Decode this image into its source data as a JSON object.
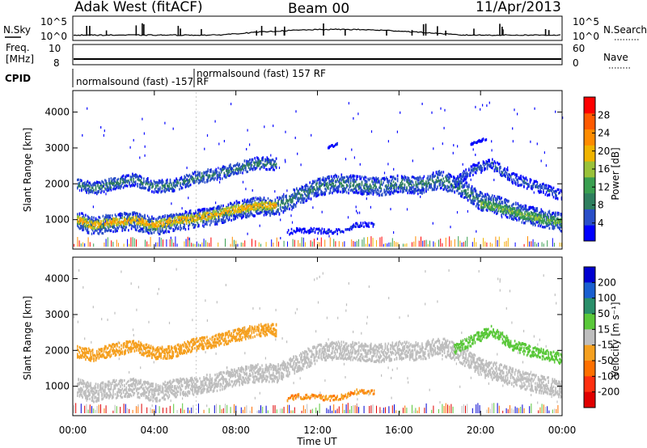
{
  "header": {
    "site": "Adak West (fitACF)",
    "beam": "Beam 00",
    "date": "11/Apr/2013"
  },
  "sky_panel": {
    "left_label": "N.Sky",
    "right_label": "N.Search",
    "ticks_left": [
      "10^5",
      "10^0"
    ],
    "ticks_right": [
      "10^5",
      "10^0"
    ]
  },
  "freq_panel": {
    "left_label_top": "Freq.",
    "left_label_unit": "[MHz]",
    "right_label": "Nave",
    "ticks_left": [
      "10",
      "8"
    ],
    "ticks_right": [
      "60",
      "0"
    ]
  },
  "cpid_panel": {
    "label": "CPID",
    "mode_a": "normalsound (fast) -157 RF",
    "mode_b": "normalsound (fast) 157 RF"
  },
  "chart_data": [
    {
      "type": "heatmap",
      "name": "power",
      "ylabel": "Slant Range [km]",
      "xlim": [
        0,
        24
      ],
      "ylim": [
        180,
        4600
      ],
      "yticks": [
        1000,
        2000,
        3000,
        4000
      ],
      "colorbar": {
        "label": "Power [dB]",
        "range": [
          0,
          32
        ],
        "ticks": [
          4,
          8,
          12,
          16,
          20,
          24,
          28
        ],
        "colors": [
          "#0000ff",
          "#2a4fc8",
          "#2f7f5f",
          "#3a9f50",
          "#9ac23a",
          "#f0b400",
          "#ff8c00",
          "#ff5a00",
          "#ff0000"
        ]
      },
      "bands": [
        {
          "points": [
            [
              0.2,
              1000
            ],
            [
              1,
              850
            ],
            [
              2,
              950
            ],
            [
              3,
              1000
            ],
            [
              4,
              850
            ],
            [
              5,
              980
            ],
            [
              6,
              1050
            ],
            [
              7,
              1150
            ],
            [
              8,
              1300
            ],
            [
              9,
              1400
            ],
            [
              10,
              1400
            ],
            [
              11,
              1680
            ],
            [
              12,
              1950
            ],
            [
              13,
              2050
            ],
            [
              14,
              2000
            ],
            [
              15,
              1950
            ],
            [
              16,
              2030
            ],
            [
              17,
              2000
            ],
            [
              18,
              2150
            ],
            [
              19,
              1930
            ],
            [
              20,
              1550
            ],
            [
              21,
              1400
            ],
            [
              22,
              1200
            ],
            [
              23,
              1080
            ],
            [
              24,
              950
            ]
          ],
          "width": 500,
          "power": 9
        },
        {
          "points": [
            [
              0.2,
              1030
            ],
            [
              1,
              880
            ],
            [
              2,
              980
            ],
            [
              3,
              1030
            ],
            [
              4,
              880
            ],
            [
              5,
              1010
            ],
            [
              6,
              1080
            ],
            [
              7,
              1180
            ],
            [
              8,
              1330
            ],
            [
              9,
              1420
            ],
            [
              10,
              1420
            ]
          ],
          "width": 220,
          "power": 22
        },
        {
          "points": [
            [
              20,
              1480
            ],
            [
              21,
              1350
            ],
            [
              22,
              1180
            ],
            [
              23,
              1050
            ],
            [
              24,
              950
            ]
          ],
          "width": 220,
          "power": 16
        },
        {
          "points": [
            [
              0.2,
              2000
            ],
            [
              1,
              1900
            ],
            [
              2,
              2050
            ],
            [
              3,
              2150
            ],
            [
              4,
              1950
            ],
            [
              5,
              2000
            ],
            [
              6,
              2200
            ],
            [
              7,
              2300
            ],
            [
              8,
              2450
            ],
            [
              9,
              2600
            ],
            [
              10,
              2600
            ]
          ],
          "width": 340,
          "power": 9
        },
        {
          "points": [
            [
              18.7,
              2050
            ],
            [
              19.5,
              2400
            ],
            [
              20.5,
              2600
            ],
            [
              21.5,
              2200
            ],
            [
              22.5,
              2000
            ],
            [
              24,
              1700
            ]
          ],
          "width": 300,
          "power": 7
        },
        {
          "points": [
            [
              10.5,
              680
            ],
            [
              11,
              750
            ],
            [
              12,
              720
            ],
            [
              13,
              700
            ],
            [
              14,
              900
            ],
            [
              14.8,
              880
            ]
          ],
          "width": 140,
          "power": 5
        },
        {
          "points": [
            [
              12.5,
              3050
            ],
            [
              13,
              3150
            ]
          ],
          "width": 60,
          "power": 3
        },
        {
          "points": [
            [
              19.5,
              3150
            ],
            [
              20.3,
              3300
            ]
          ],
          "width": 60,
          "power": 3
        }
      ]
    },
    {
      "type": "heatmap",
      "name": "velocity",
      "ylabel": "Slant Range [km]",
      "xlabel": "Time UT",
      "xlim": [
        0,
        24
      ],
      "ylim": [
        180,
        4600
      ],
      "yticks": [
        1000,
        2000,
        3000,
        4000
      ],
      "xticks": [
        "00:00",
        "04:00",
        "08:00",
        "12:00",
        "16:00",
        "20:00",
        "00:00"
      ],
      "colorbar": {
        "label": "Velocity [m s⁻¹]",
        "range": [
          -250,
          250
        ],
        "ticks": [
          "200",
          "100",
          "50",
          "15",
          "-15",
          "-50",
          "-100",
          "-200"
        ],
        "colors": [
          "#0000d0",
          "#1a5fd0",
          "#2a8f6a",
          "#5ac83a",
          "#bebebe",
          "#f5a020",
          "#ff7000",
          "#ff3010",
          "#e00000"
        ]
      },
      "bands": [
        {
          "points": [
            [
              0.2,
              1000
            ],
            [
              1,
              850
            ],
            [
              2,
              950
            ],
            [
              3,
              1000
            ],
            [
              4,
              850
            ],
            [
              5,
              980
            ],
            [
              6,
              1050
            ],
            [
              7,
              1150
            ],
            [
              8,
              1300
            ],
            [
              9,
              1400
            ],
            [
              10,
              1400
            ],
            [
              11,
              1680
            ],
            [
              12,
              1950
            ],
            [
              13,
              2050
            ],
            [
              14,
              2000
            ],
            [
              15,
              1950
            ],
            [
              16,
              2030
            ],
            [
              17,
              2000
            ],
            [
              18,
              2150
            ],
            [
              19,
              1930
            ],
            [
              20,
              1550
            ],
            [
              21,
              1400
            ],
            [
              22,
              1200
            ],
            [
              23,
              1080
            ],
            [
              24,
              950
            ]
          ],
          "width": 500,
          "vel": 0
        },
        {
          "points": [
            [
              0.2,
              2000
            ],
            [
              1,
              1900
            ],
            [
              2,
              2050
            ],
            [
              3,
              2150
            ],
            [
              4,
              1950
            ],
            [
              5,
              2000
            ],
            [
              6,
              2200
            ],
            [
              7,
              2300
            ],
            [
              8,
              2450
            ],
            [
              9,
              2600
            ],
            [
              10,
              2600
            ]
          ],
          "width": 340,
          "vel": -30
        },
        {
          "points": [
            [
              18.7,
              2050
            ],
            [
              19.5,
              2300
            ],
            [
              20.5,
              2600
            ],
            [
              21.5,
              2200
            ],
            [
              22.5,
              2000
            ],
            [
              24,
              1800
            ]
          ],
          "width": 300,
          "vel": 30
        },
        {
          "points": [
            [
              10.5,
              680
            ],
            [
              11,
              750
            ],
            [
              12,
              720
            ],
            [
              13,
              700
            ],
            [
              14,
              900
            ],
            [
              14.8,
              880
            ]
          ],
          "width": 140,
          "vel": -45
        }
      ]
    }
  ]
}
